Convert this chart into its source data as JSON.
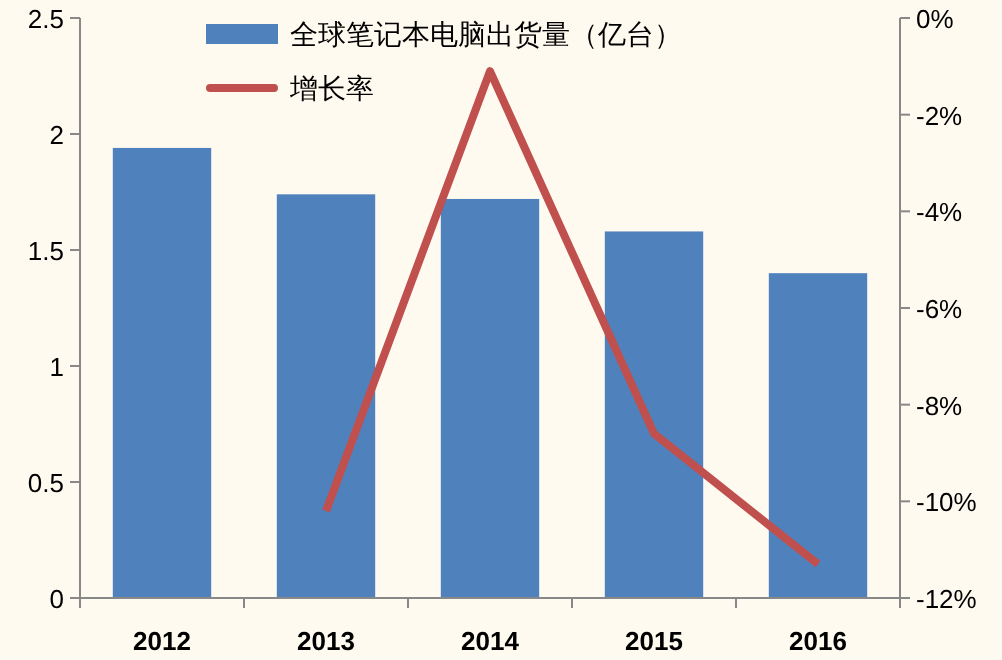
{
  "chart_data": {
    "type": "bar",
    "categories": [
      "2012",
      "2013",
      "2014",
      "2015",
      "2016"
    ],
    "series": [
      {
        "name": "全球笔记本电脑出货量（亿台）",
        "color": "#4f81bd",
        "values": [
          1.94,
          1.74,
          1.72,
          1.58,
          1.4
        ]
      },
      {
        "name": "增长率",
        "type": "line",
        "axis": "y2",
        "color": "#c0504d",
        "values": [
          null,
          -10.2,
          -1.1,
          -8.6,
          -11.3
        ]
      }
    ],
    "ylim": [
      0,
      2.5
    ],
    "yticks": [
      0,
      0.5,
      1,
      1.5,
      2,
      2.5
    ],
    "y2lim": [
      -12,
      0
    ],
    "y2ticks": [
      {
        "value": 0,
        "label": "0%"
      },
      {
        "value": -2,
        "label": "-2%"
      },
      {
        "value": -4,
        "label": "-4%"
      },
      {
        "value": -6,
        "label": "-6%"
      },
      {
        "value": -8,
        "label": "-8%"
      },
      {
        "value": -10,
        "label": "-10%"
      },
      {
        "value": -12,
        "label": "-12%"
      }
    ],
    "grid": false,
    "legend": "top"
  }
}
